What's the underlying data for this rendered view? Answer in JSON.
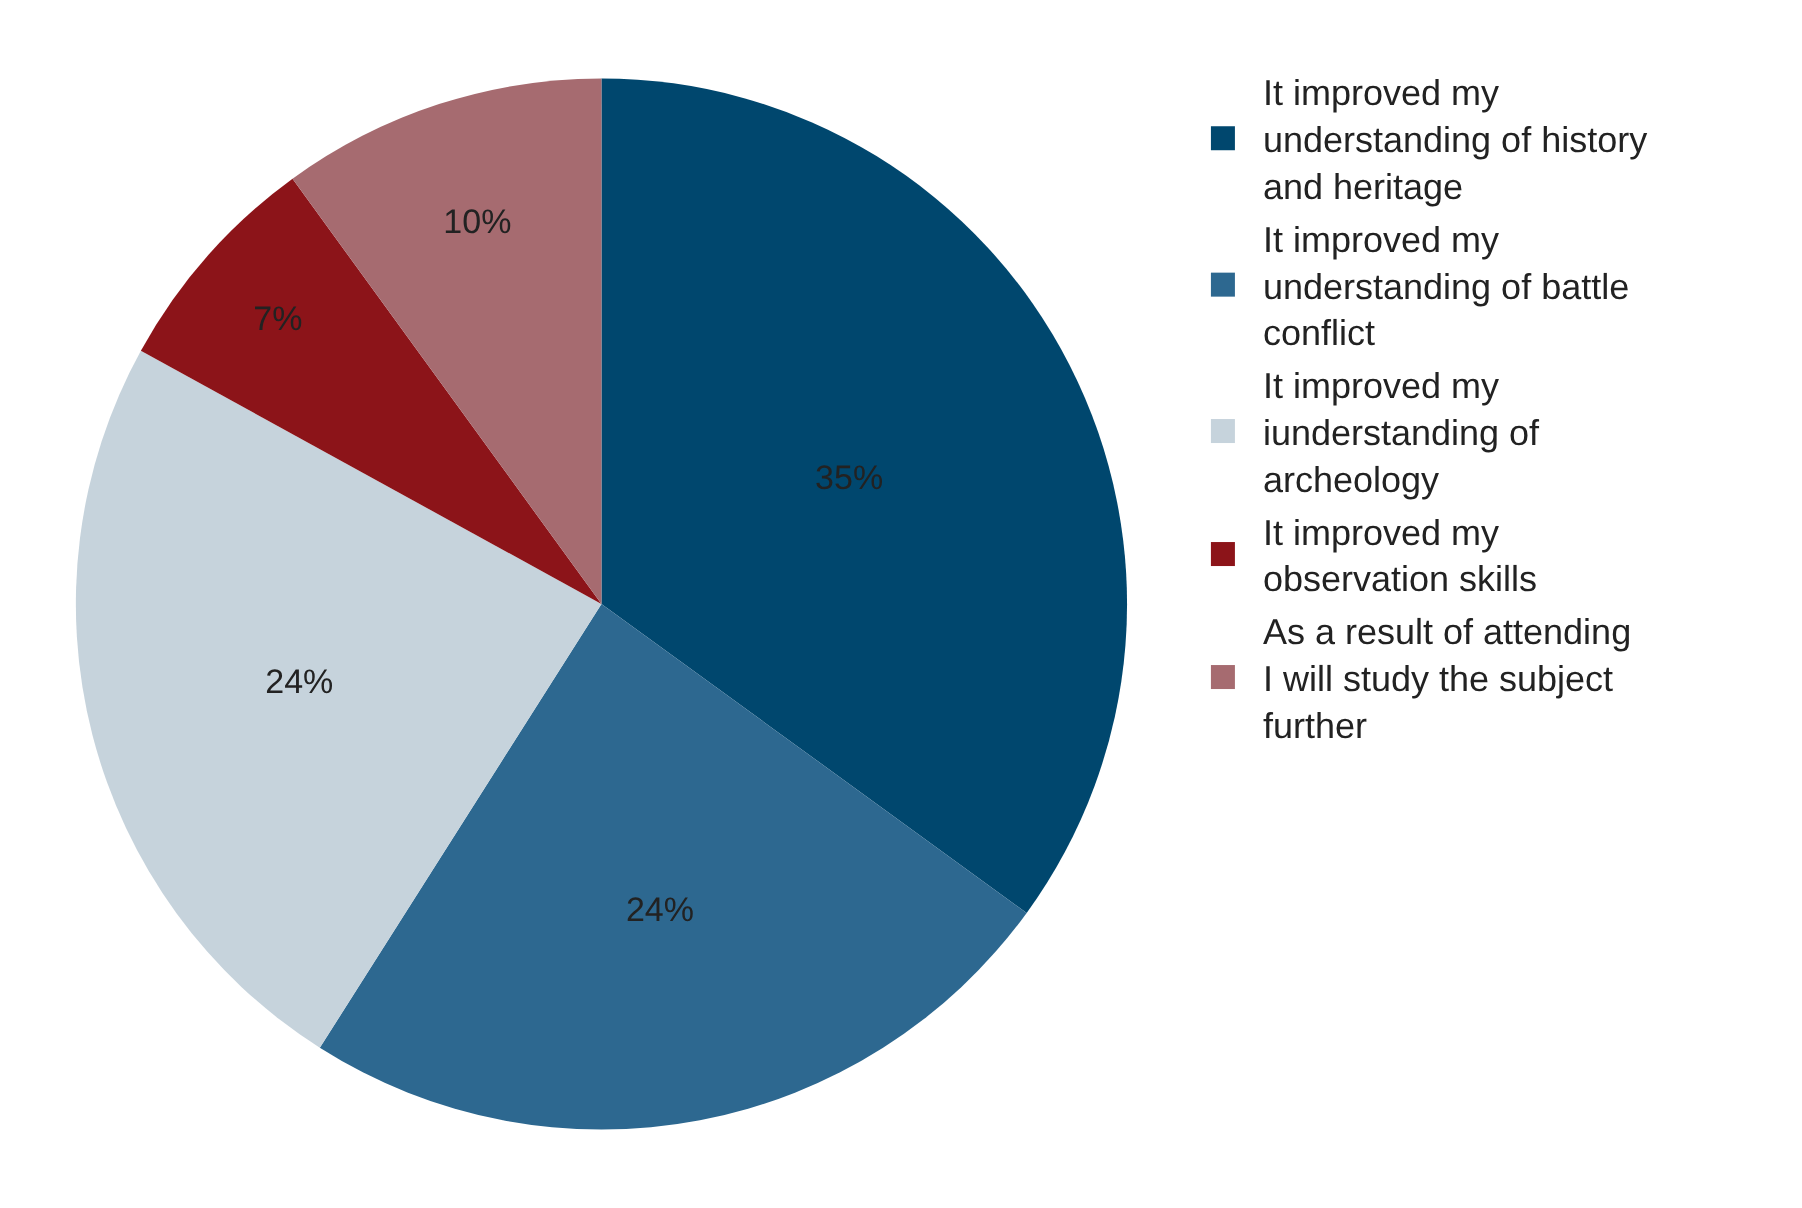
{
  "chart_data": {
    "type": "pie",
    "categories": [
      "It improved my understanding of history and heritage",
      "It improved my understanding of battle conflict",
      "It improved my iunderstanding of archeology",
      "It improved my observation skills",
      "As a result of attending I will study the subject further"
    ],
    "values": [
      35,
      24,
      24,
      7,
      10
    ],
    "value_labels": [
      "35%",
      "24%",
      "24%",
      "7%",
      "10%"
    ],
    "colors": [
      "#00476e",
      "#2d6890",
      "#c6d3dc",
      "#8c1419",
      "#a66b70"
    ],
    "legend": "right"
  }
}
